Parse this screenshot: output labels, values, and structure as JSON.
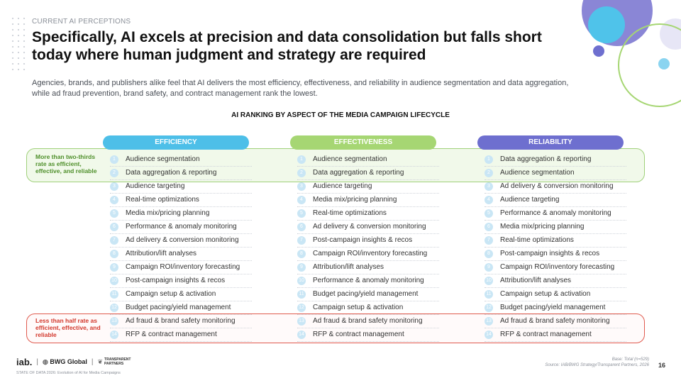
{
  "header": {
    "eyebrow": "CURRENT AI PERCEPTIONS",
    "title": "Specifically, AI excels at precision and data consolidation but falls short today where human judgment and strategy are required",
    "subtitle": "Agencies, brands, and publishers alike feel that AI delivers the most efficiency, effectiveness, and reliability in audience segmentation and data aggregation, while ad fraud prevention, brand safety, and contract management rank the lowest."
  },
  "chart": {
    "title": "AI RANKING BY ASPECT OF THE MEDIA CAMPAIGN LIFECYCLE",
    "columns": [
      {
        "header": "EFFICIENCY",
        "color": "#4dbfe8",
        "items": [
          {
            "rank": "1",
            "label": "Audience segmentation"
          },
          {
            "rank": "2",
            "label": "Data aggregation & reporting"
          },
          {
            "rank": "3",
            "label": "Audience targeting"
          },
          {
            "rank": "4",
            "label": "Real-time optimizations"
          },
          {
            "rank": "5",
            "label": "Media mix/pricing planning"
          },
          {
            "rank": "6",
            "label": "Performance & anomaly monitoring"
          },
          {
            "rank": "7",
            "label": "Ad delivery & conversion monitoring"
          },
          {
            "rank": "8",
            "label": "Attribution/lift analyses"
          },
          {
            "rank": "9",
            "label": "Campaign ROI/inventory forecasting"
          },
          {
            "rank": "10",
            "label": "Post-campaign insights & recos"
          },
          {
            "rank": "11",
            "label": "Campaign setup & activation"
          },
          {
            "rank": "12",
            "label": "Budget pacing/yield management"
          },
          {
            "rank": "13",
            "label": "Ad fraud & brand safety monitoring"
          },
          {
            "rank": "14",
            "label": "RFP & contract management"
          }
        ]
      },
      {
        "header": "EFFECTIVENESS",
        "color": "#a6d673",
        "items": [
          {
            "rank": "1",
            "label": "Audience segmentation"
          },
          {
            "rank": "2",
            "label": "Data aggregation & reporting"
          },
          {
            "rank": "3",
            "label": "Audience targeting"
          },
          {
            "rank": "4",
            "label": "Media mix/pricing planning"
          },
          {
            "rank": "5",
            "label": "Real-time optimizations"
          },
          {
            "rank": "6",
            "label": "Ad delivery & conversion monitoring"
          },
          {
            "rank": "7",
            "label": "Post-campaign insights & recos"
          },
          {
            "rank": "8",
            "label": "Campaign ROI/inventory forecasting"
          },
          {
            "rank": "9",
            "label": "Attribution/lift analyses"
          },
          {
            "rank": "10",
            "label": "Performance & anomaly monitoring"
          },
          {
            "rank": "11",
            "label": "Budget pacing/yield management"
          },
          {
            "rank": "12",
            "label": "Campaign setup & activation"
          },
          {
            "rank": "13",
            "label": "Ad fraud & brand safety monitoring"
          },
          {
            "rank": "14",
            "label": "RFP & contract management"
          }
        ]
      },
      {
        "header": "RELIABILITY",
        "color": "#6e6fcf",
        "items": [
          {
            "rank": "1",
            "label": "Data aggregation & reporting"
          },
          {
            "rank": "2",
            "label": "Audience segmentation"
          },
          {
            "rank": "3",
            "label": "Ad delivery & conversion monitoring"
          },
          {
            "rank": "4",
            "label": "Audience targeting"
          },
          {
            "rank": "5",
            "label": "Performance & anomaly monitoring"
          },
          {
            "rank": "6",
            "label": "Media mix/pricing planning"
          },
          {
            "rank": "7",
            "label": "Real-time optimizations"
          },
          {
            "rank": "8",
            "label": "Post-campaign insights & recos"
          },
          {
            "rank": "9",
            "label": "Campaign ROI/inventory forecasting"
          },
          {
            "rank": "10",
            "label": "Attribution/lift analyses"
          },
          {
            "rank": "11",
            "label": "Campaign setup & activation"
          },
          {
            "rank": "12",
            "label": "Budget pacing/yield management"
          },
          {
            "rank": "13",
            "label": "Ad fraud & brand safety monitoring"
          },
          {
            "rank": "14",
            "label": "RFP & contract management"
          }
        ]
      }
    ],
    "top_band": {
      "text": "More than two-thirds rate as efficient, effective, and reliable",
      "color": "#4e8f2a"
    },
    "bottom_band": {
      "text": "Less than half rate as efficient, effective, and reliable",
      "color": "#d2372b"
    }
  },
  "footer": {
    "base": "Base: Total (n=529)",
    "source": "Source: IAB/BWG Strategy/Transparent Partners, 2026",
    "page": "16",
    "logo_iab": "iab.",
    "logo_bwg": "BWG Global",
    "logo_tp": "TRANSPARENT PARTNERS",
    "study": "STATE OF DATA 2026: Evolution of AI for Media Campaigns"
  },
  "colors": {
    "num_badge": "#c9e6f5"
  }
}
